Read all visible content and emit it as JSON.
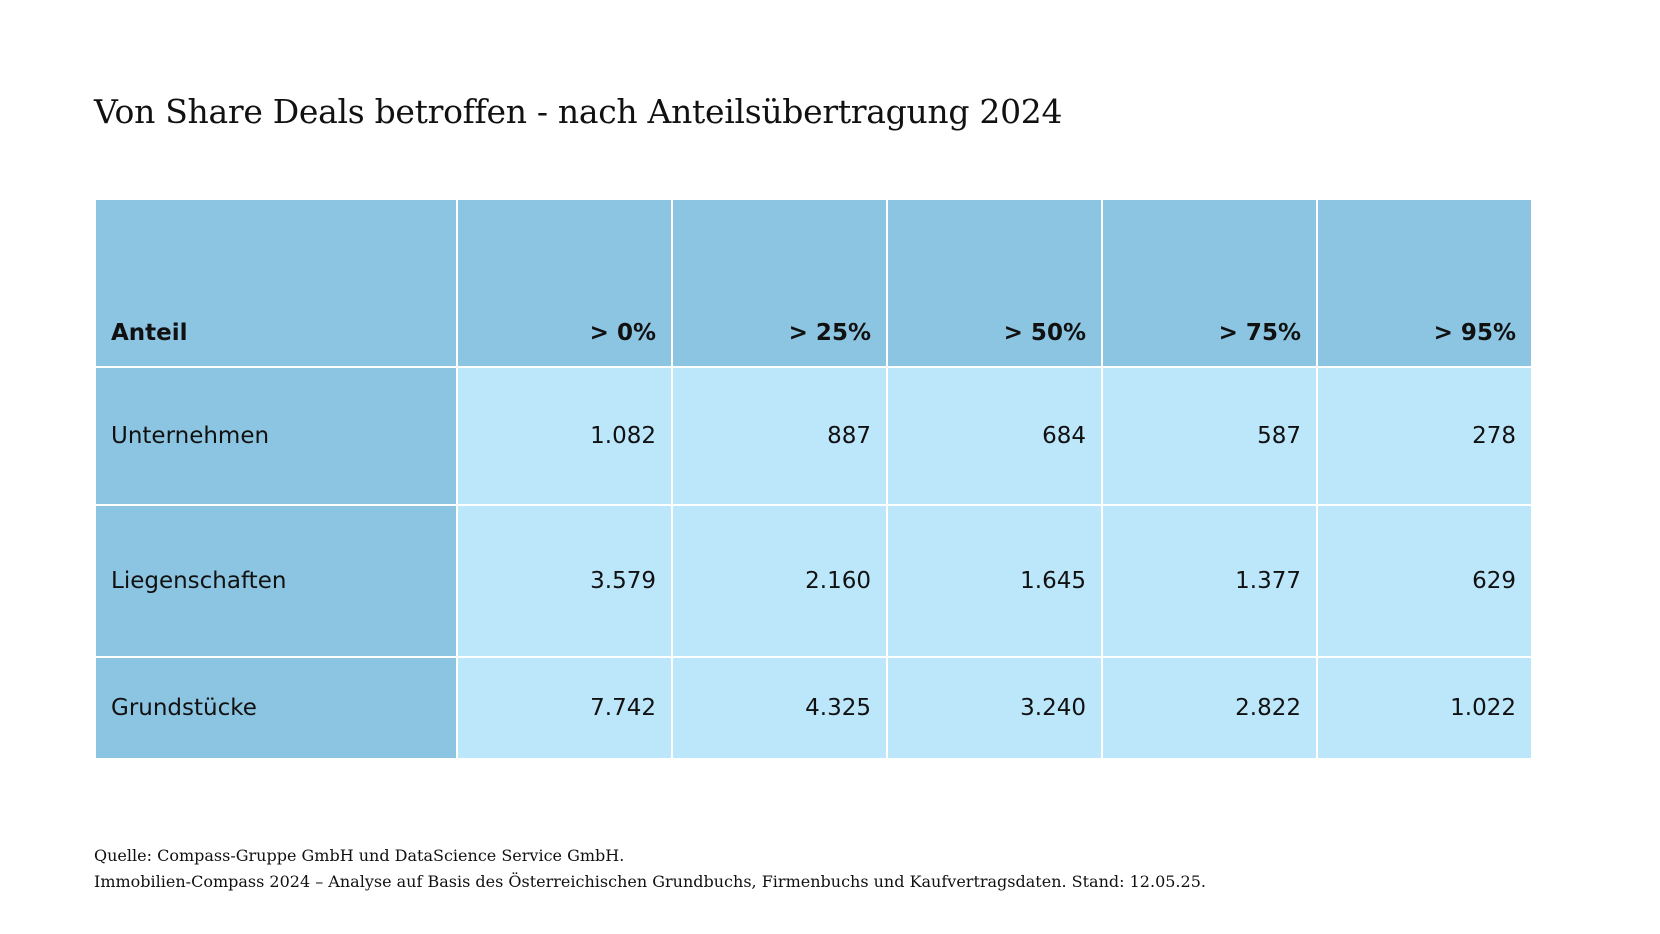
{
  "title": "Von Share Deals betroffen - nach Anteilsübertragung 2024",
  "table": {
    "header": [
      "Anteil",
      "> 0%",
      "> 25%",
      "> 50%",
      "> 75%",
      "> 95%"
    ],
    "rows": [
      {
        "label": "Unternehmen",
        "values": [
          "1.082",
          "887",
          "684",
          "587",
          "278"
        ]
      },
      {
        "label": "Liegenschaften",
        "values": [
          "3.579",
          "2.160",
          "1.645",
          "1.377",
          "629"
        ]
      },
      {
        "label": "Grundstücke",
        "values": [
          "7.742",
          "4.325",
          "3.240",
          "2.822",
          "1.022"
        ]
      }
    ]
  },
  "source": {
    "line1": "Quelle: Compass-Gruppe GmbH und DataScience Service GmbH.",
    "line2": "Immobilien-Compass 2024 – Analyse auf Basis des Österreichischen Grundbuchs, Firmenbuchs und Kaufvertragsdaten. Stand: 12.05.25."
  },
  "colors": {
    "header_bg": "#8cc5e2",
    "label_bg": "#8cc5e2",
    "cell_bg": "#bce7fb",
    "grid_line": "#ffffff",
    "text": "#111111"
  }
}
